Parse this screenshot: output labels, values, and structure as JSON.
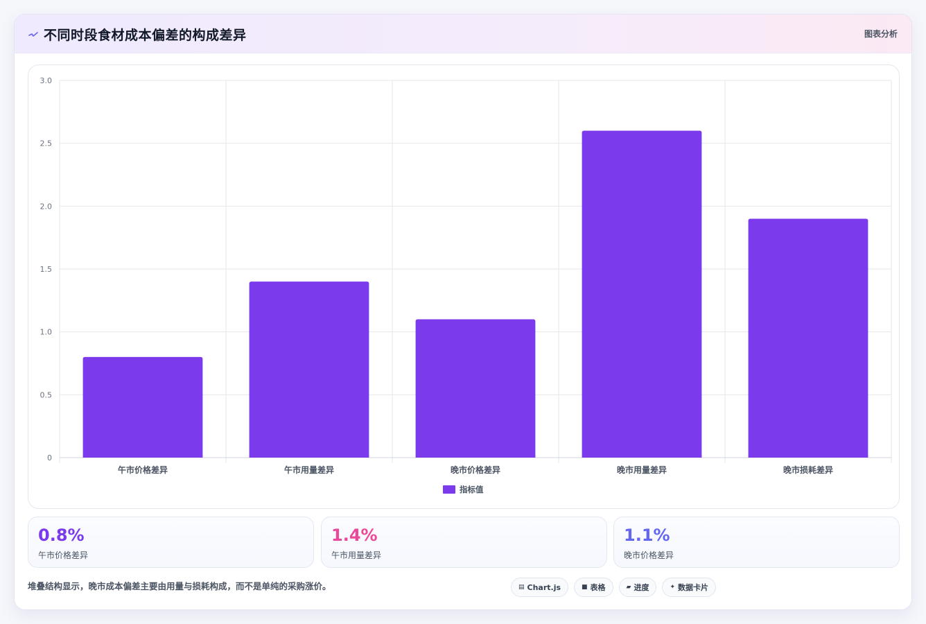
{
  "header": {
    "title": "不同时段食材成本偏差的构成差异",
    "action_label": "图表分析",
    "icon": "pulse-icon"
  },
  "chart_data": {
    "type": "bar",
    "categories": [
      "午市价格差异",
      "午市用量差异",
      "晚市价格差异",
      "晚市用量差异",
      "晚市损耗差异"
    ],
    "series": [
      {
        "name": "指标值",
        "values": [
          0.8,
          1.4,
          1.1,
          2.6,
          1.9
        ],
        "color": "#7c3aed"
      }
    ],
    "title": "",
    "xlabel": "",
    "ylabel": "",
    "ylim": [
      0,
      3.0
    ],
    "yticks": [
      "0",
      "0.5",
      "1.0",
      "1.5",
      "2.0",
      "2.5",
      "3.0"
    ],
    "grid": true,
    "legend": "bottom"
  },
  "stats": [
    {
      "value": "0.8%",
      "label": "午市价格差异",
      "color": "#7c3aed"
    },
    {
      "value": "1.4%",
      "label": "午市用量差异",
      "color": "#ec4899"
    },
    {
      "value": "1.1%",
      "label": "晚市价格差异",
      "color": "#6366f1"
    }
  ],
  "footer": {
    "note": "堆叠结构显示，晚市成本偏差主要由用量与损耗构成，而不是单纯的采购涨价。",
    "chips": [
      {
        "icon": "chart-icon",
        "glyph": "▤",
        "label": "Chart.js"
      },
      {
        "icon": "table-icon",
        "glyph": "■",
        "label": "表格"
      },
      {
        "icon": "progress-icon",
        "glyph": "▰",
        "label": "进度"
      },
      {
        "icon": "sparkle-icon",
        "glyph": "✦",
        "label": "数据卡片"
      }
    ]
  }
}
